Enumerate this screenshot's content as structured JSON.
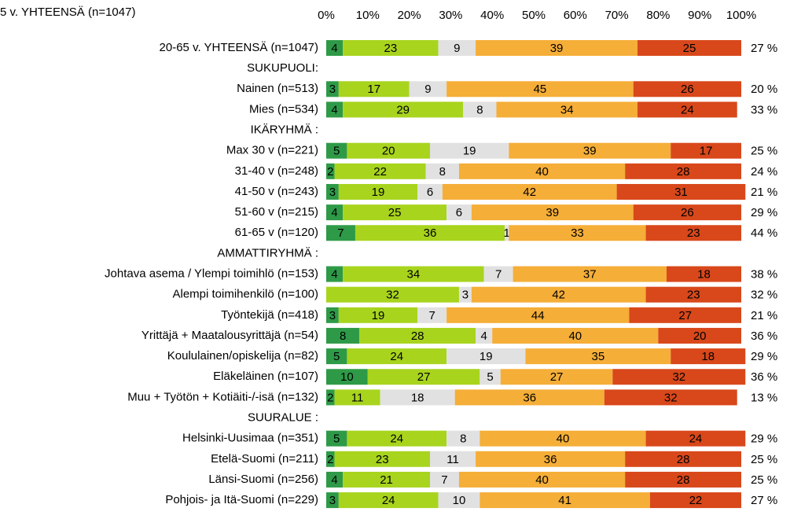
{
  "chart_data": {
    "type": "stacked_bar_horizontal",
    "title": "5 v. YHTEENSÄ (n=1047)",
    "categories": [
      "20-65 v. YHTEENSÄ (n=1047)",
      "SUKUPUOLI:",
      "Nainen (n=513)",
      "Mies (n=534)",
      "IKÄRYHMÄ :",
      "Max 30 v (n=221)",
      "31-40 v (n=248)",
      "41-50 v (n=243)",
      "51-60 v (n=215)",
      "61-65 v (n=120)",
      "AMMATTIRYHMÄ :",
      "Johtava asema / Ylempi toimihlö (n=153)",
      "Alempi toimihenkilö (n=100)",
      "Työntekijä (n=418)",
      "Yrittäjä + Maatalousyrittäjä (n=54)",
      "Koululainen/opiskelija (n=82)",
      "Eläkeläinen (n=107)",
      "Muu + Työtön + Kotiäiti-/-isä (n=132)",
      "SUURALUE :",
      "Helsinki-Uusimaa (n=351)",
      "Etelä-Suomi (n=211)",
      "Länsi-Suomi (n=256)",
      "Pohjois- ja Itä-Suomi (n=229)"
    ],
    "series": [
      {
        "color": "#2e9a48",
        "values": [
          4,
          null,
          3,
          4,
          null,
          5,
          2,
          3,
          4,
          7,
          null,
          4,
          0,
          3,
          8,
          5,
          10,
          2,
          null,
          5,
          2,
          4,
          3
        ]
      },
      {
        "color": "#a8d41e",
        "values": [
          23,
          null,
          17,
          29,
          null,
          20,
          22,
          19,
          25,
          36,
          null,
          34,
          32,
          19,
          28,
          24,
          27,
          11,
          null,
          24,
          23,
          21,
          24
        ]
      },
      {
        "color": "#e1e1e1",
        "values": [
          9,
          null,
          9,
          8,
          null,
          19,
          8,
          6,
          6,
          1,
          null,
          7,
          3,
          7,
          4,
          19,
          5,
          18,
          null,
          8,
          11,
          7,
          10
        ]
      },
      {
        "color": "#f5ae38",
        "values": [
          39,
          null,
          45,
          34,
          null,
          39,
          40,
          42,
          39,
          33,
          null,
          37,
          42,
          44,
          40,
          35,
          27,
          36,
          null,
          40,
          36,
          40,
          41
        ]
      },
      {
        "color": "#d8481b",
        "values": [
          25,
          null,
          26,
          24,
          null,
          17,
          28,
          31,
          26,
          23,
          null,
          18,
          23,
          27,
          20,
          18,
          32,
          32,
          null,
          24,
          28,
          28,
          22
        ]
      }
    ],
    "net": {
      "values": [
        27,
        null,
        20,
        33,
        null,
        25,
        24,
        21,
        29,
        44,
        null,
        38,
        32,
        21,
        36,
        29,
        36,
        13,
        null,
        29,
        25,
        25,
        27
      ],
      "value_labels": [
        "27 %",
        null,
        "20 %",
        "33 %",
        null,
        "25 %",
        "24 %",
        "21 %",
        "29 %",
        "44 %",
        null,
        "38 %",
        "32 %",
        "21 %",
        "36 %",
        "29 %",
        "36 %",
        "13 %",
        null,
        "29 %",
        "25 %",
        "25 %",
        "27 %"
      ]
    },
    "xlim": [
      0,
      100
    ],
    "xticks": [
      {
        "value": 0,
        "label": "0%"
      },
      {
        "value": 10,
        "label": "10%"
      },
      {
        "value": 20,
        "label": "20%"
      },
      {
        "value": 30,
        "label": "30%"
      },
      {
        "value": 40,
        "label": "40%"
      },
      {
        "value": 50,
        "label": "50%"
      },
      {
        "value": 60,
        "label": "60%"
      },
      {
        "value": 70,
        "label": "70%"
      },
      {
        "value": 80,
        "label": "80%"
      },
      {
        "value": 90,
        "label": "90%"
      },
      {
        "value": 100,
        "label": "100%"
      }
    ],
    "grid": false
  }
}
